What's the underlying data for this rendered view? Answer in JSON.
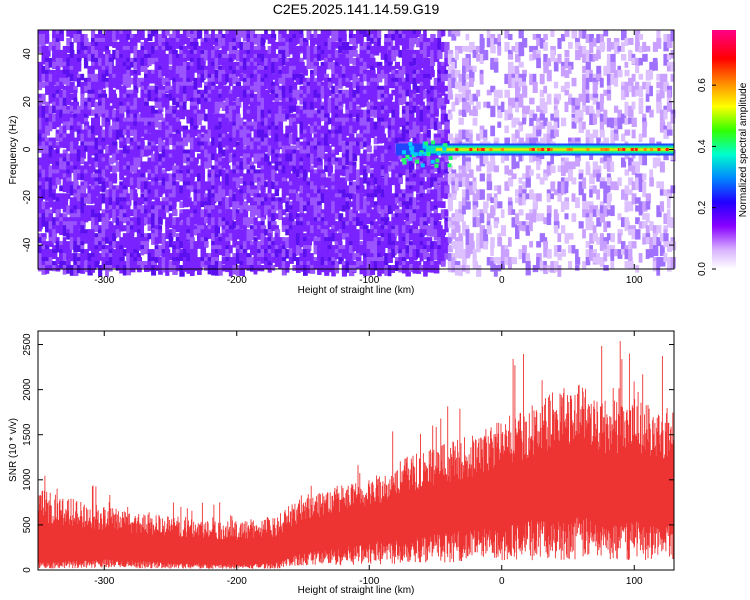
{
  "figure_title": "C2E5.2025.141.14.59.G19",
  "chart_data": [
    {
      "type": "heatmap",
      "xlabel": "Height of straight line (km)",
      "ylabel": "Frequency (Hz)",
      "xlim": [
        -350,
        130
      ],
      "ylim": [
        -50,
        50
      ],
      "x_ticks": [
        -300,
        -200,
        -100,
        0,
        100
      ],
      "y_ticks": [
        -40,
        -20,
        0,
        20,
        40
      ],
      "colorbar": {
        "label": "Normalized spectral amplitude",
        "range": [
          0.0,
          0.78
        ],
        "ticks": [
          0.0,
          0.2,
          0.4,
          0.6
        ],
        "colormap": [
          "#ffffff",
          "#d9b3ff",
          "#8800ff",
          "#2200ff",
          "#0088ff",
          "#00ffcc",
          "#33ff00",
          "#ffff00",
          "#ff8800",
          "#ff0000",
          "#ff0088"
        ]
      },
      "noise_color": "#7a22ff",
      "signal_band": {
        "frequency_hz": 0,
        "onset_km": -80,
        "end_km": 130,
        "peak_amplitude": 0.7
      }
    },
    {
      "type": "area",
      "xlabel": "Height of straight line (km)",
      "ylabel": "SNR (10 * v/v)",
      "xlim": [
        -350,
        130
      ],
      "ylim": [
        0,
        2650
      ],
      "x_ticks": [
        -300,
        -200,
        -100,
        0,
        100
      ],
      "y_ticks": [
        0,
        500,
        1000,
        1500,
        2000,
        2500
      ],
      "color": "#ee3333",
      "envelope": {
        "x": [
          -350,
          -300,
          -250,
          -200,
          -170,
          -150,
          -120,
          -100,
          -80,
          -50,
          -20,
          0,
          20,
          40,
          60,
          80,
          100,
          130
        ],
        "upper": [
          900,
          700,
          600,
          550,
          600,
          850,
          950,
          1000,
          1200,
          1400,
          1500,
          1700,
          1800,
          2000,
          2100,
          1900,
          1900,
          1800
        ],
        "lower": [
          80,
          120,
          80,
          60,
          80,
          200,
          250,
          300,
          350,
          400,
          450,
          500,
          550,
          550,
          600,
          500,
          550,
          500
        ]
      }
    }
  ]
}
